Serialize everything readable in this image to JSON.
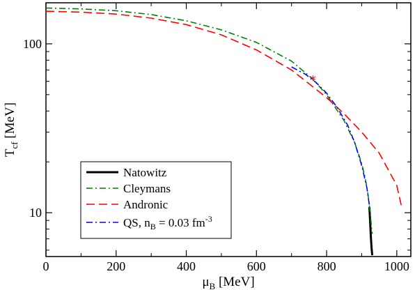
{
  "chart_data": {
    "type": "line",
    "xlabel": {
      "main": "μ",
      "sub": "B",
      "unit": " [MeV]"
    },
    "ylabel": {
      "main": "T",
      "sub": "cf",
      "unit": " [MeV]"
    },
    "xlim": [
      0,
      1040
    ],
    "ylim": [
      5.5,
      175
    ],
    "yscale": "log",
    "grid": false,
    "legend_position": "lower-left",
    "x_ticks": [
      0,
      200,
      400,
      600,
      800,
      1000
    ],
    "x_tick_labels": [
      "0",
      "200",
      "400",
      "600",
      "800",
      "1000"
    ],
    "y_ticks": [
      10,
      100
    ],
    "y_tick_labels": [
      "10",
      "100"
    ],
    "series": [
      {
        "name": "Natowitz",
        "color": "#000000",
        "style": "solid",
        "x": [
          922,
          924,
          926,
          928,
          930
        ],
        "y": [
          10.8,
          8.8,
          7.2,
          6.2,
          5.6
        ]
      },
      {
        "name": "Cleymans",
        "color": "#008000",
        "style": "dashdot",
        "x": [
          0,
          100,
          200,
          300,
          400,
          500,
          600,
          700,
          760,
          800,
          850,
          880,
          900,
          910,
          915,
          920,
          925,
          930
        ],
        "y": [
          163,
          161,
          157,
          149,
          137,
          121,
          102,
          79,
          62,
          50,
          35,
          26,
          19.5,
          16,
          14,
          12,
          9.5,
          7.5
        ]
      },
      {
        "name": "Andronic",
        "color": "#ff0000",
        "style": "dashed",
        "x": [
          0,
          100,
          200,
          300,
          400,
          500,
          600,
          700,
          800,
          850,
          900,
          950,
          1000,
          1013
        ],
        "y": [
          156,
          154,
          150,
          142,
          130,
          113,
          92,
          70,
          48,
          38.5,
          30,
          22.5,
          14.5,
          11
        ]
      },
      {
        "name": "QS, n_B = 0.03 fm^-3",
        "color": "#0000ff",
        "style": "dashdot",
        "x": [
          700,
          740,
          770,
          800,
          830,
          860,
          880,
          900,
          915,
          922
        ],
        "y": [
          73,
          66,
          59,
          51,
          42,
          33,
          26,
          19,
          14,
          11
        ]
      }
    ],
    "marker": {
      "x": 761,
      "y": 62,
      "symbol": "*",
      "color": "#ff0000"
    }
  },
  "legend": {
    "items": [
      {
        "label": "Natowitz",
        "color": "#000000",
        "style": "solid"
      },
      {
        "label": "Cleymans",
        "color": "#008000",
        "style": "dashdot"
      },
      {
        "label": "Andronic",
        "color": "#ff0000",
        "style": "dashed"
      },
      {
        "label_main": "QS, n",
        "label_sub": "B",
        "label_rest": " = 0.03 fm",
        "label_sup": "-3",
        "color": "#0000ff",
        "style": "dashdot"
      }
    ]
  }
}
